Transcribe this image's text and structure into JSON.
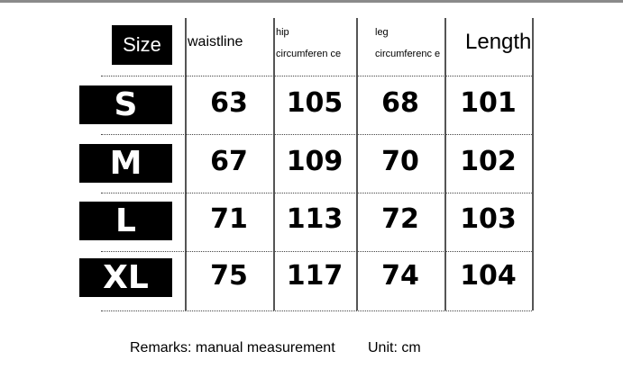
{
  "header": {
    "size": "Size",
    "columns": [
      {
        "line1": "waistline",
        "line2": ""
      },
      {
        "line1": "hip",
        "line2": "circumferen ce"
      },
      {
        "line1": "leg",
        "line2": "circumferenc e"
      },
      {
        "line1": "Length",
        "line2": ""
      }
    ]
  },
  "rows": [
    {
      "size": "S",
      "values": [
        "63",
        "105",
        "68",
        "101"
      ]
    },
    {
      "size": "M",
      "values": [
        "67",
        "109",
        "70",
        "102"
      ]
    },
    {
      "size": "L",
      "values": [
        "71",
        "113",
        "72",
        "103"
      ]
    },
    {
      "size": "XL",
      "values": [
        "75",
        "117",
        "74",
        "104"
      ]
    }
  ],
  "footer": {
    "remarks": "Remarks: manual measurement",
    "unit": "Unit: cm"
  }
}
